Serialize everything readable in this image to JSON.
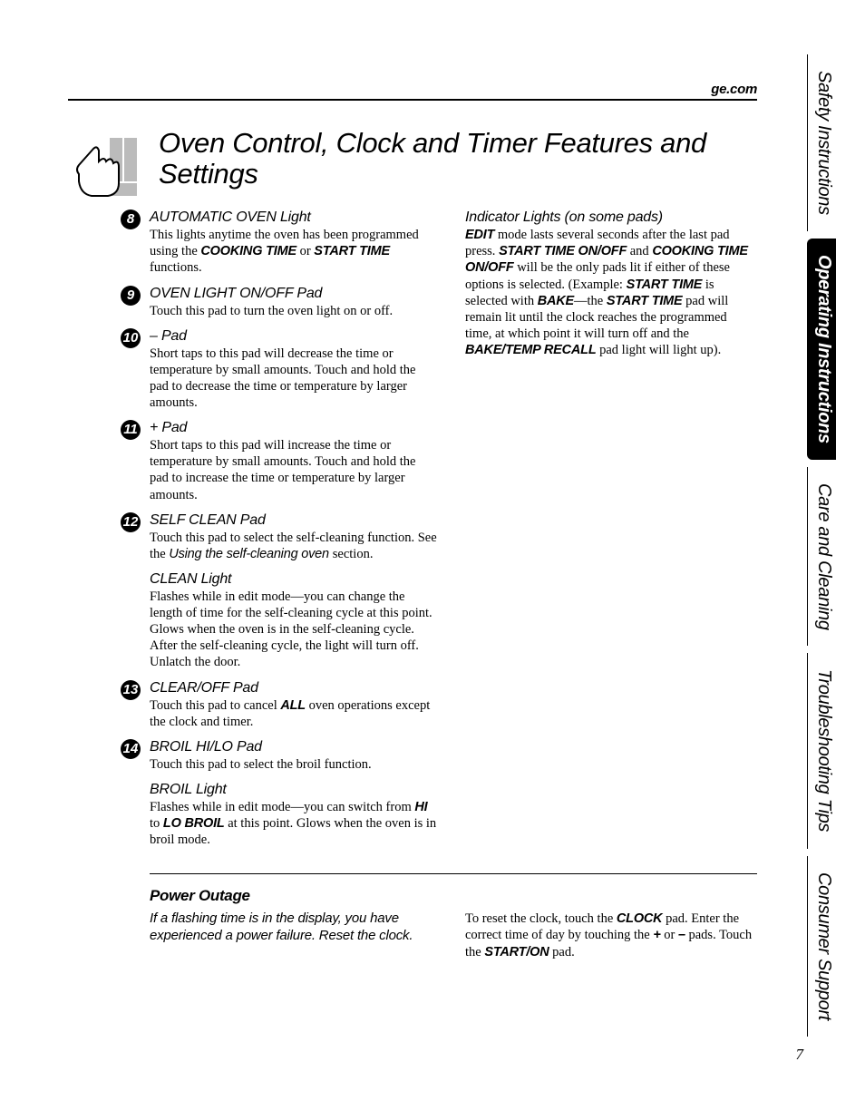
{
  "website": "ge.com",
  "pageTitle": "Oven Control, Clock and Timer Features and Settings",
  "pageNumber": "7",
  "tabs": [
    {
      "label": "Safety Instructions",
      "active": false
    },
    {
      "label": "Operating Instructions",
      "active": true
    },
    {
      "label": "Care and Cleaning",
      "active": false
    },
    {
      "label": "Troubleshooting Tips",
      "active": false
    },
    {
      "label": "Consumer Support",
      "active": false
    }
  ],
  "leftColumn": [
    {
      "num": "8",
      "title": "AUTOMATIC OVEN Light",
      "segments": [
        {
          "text": "This lights anytime the oven has been programmed using the ",
          "style": "plain"
        },
        {
          "text": "COOKING TIME",
          "style": "bold"
        },
        {
          "text": " or ",
          "style": "plain"
        },
        {
          "text": "START TIME",
          "style": "bold"
        },
        {
          "text": " functions.",
          "style": "plain"
        }
      ]
    },
    {
      "num": "9",
      "title": "OVEN LIGHT ON/OFF Pad",
      "segments": [
        {
          "text": "Touch this pad to turn the oven light on or off.",
          "style": "plain"
        }
      ]
    },
    {
      "num": "10",
      "title": "– Pad",
      "segments": [
        {
          "text": "Short taps to this pad will decrease the time or temperature by small amounts. Touch and hold the pad to decrease the time or temperature by larger amounts.",
          "style": "plain"
        }
      ]
    },
    {
      "num": "11",
      "title": "+ Pad",
      "segments": [
        {
          "text": "Short taps to this pad will increase the time or temperature by small amounts. Touch and hold the pad to increase the time or temperature by larger amounts.",
          "style": "plain"
        }
      ]
    },
    {
      "num": "12",
      "title": "SELF CLEAN Pad",
      "segments": [
        {
          "text": "Touch this pad to select the self-cleaning function. See the ",
          "style": "plain"
        },
        {
          "text": "Using the self-cleaning oven ",
          "style": "italic"
        },
        {
          "text": "section.",
          "style": "plain"
        }
      ]
    },
    {
      "num": "",
      "title": "CLEAN Light",
      "segments": [
        {
          "text": "Flashes while in edit mode—you can change the length of time for the self-cleaning cycle at this point. Glows when the oven is in the self-cleaning cycle. After the self-cleaning cycle, the light will turn off. Unlatch the door.",
          "style": "plain"
        }
      ]
    },
    {
      "num": "13",
      "title": "CLEAR/OFF Pad",
      "segments": [
        {
          "text": "Touch this pad to cancel ",
          "style": "plain"
        },
        {
          "text": "ALL",
          "style": "bold"
        },
        {
          "text": "  oven operations except the clock and timer.",
          "style": "plain"
        }
      ]
    },
    {
      "num": "14",
      "title": "BROIL HI/LO Pad",
      "segments": [
        {
          "text": "Touch this pad to select the broil function.",
          "style": "plain"
        }
      ]
    },
    {
      "num": "",
      "title": "BROIL Light",
      "segments": [
        {
          "text": "Flashes while in edit mode—you can switch from ",
          "style": "plain"
        },
        {
          "text": "HI",
          "style": "bold"
        },
        {
          "text": " to ",
          "style": "plain"
        },
        {
          "text": "LO BROIL",
          "style": "bold"
        },
        {
          "text": " at this point. Glows when the oven is in broil mode.",
          "style": "plain"
        }
      ]
    }
  ],
  "rightColumn": [
    {
      "title": "Indicator Lights (on some pads)",
      "segments": [
        {
          "text": "EDIT",
          "style": "bold"
        },
        {
          "text": " mode lasts several seconds after the last pad press. ",
          "style": "plain"
        },
        {
          "text": "START TIME ON/OFF",
          "style": "bold"
        },
        {
          "text": " and ",
          "style": "plain"
        },
        {
          "text": "COOKING TIME ON/OFF",
          "style": "bold"
        },
        {
          "text": " will be the only pads lit if either of these options is selected. (Example: ",
          "style": "plain"
        },
        {
          "text": "START TIME",
          "style": "bold"
        },
        {
          "text": " is selected with ",
          "style": "plain"
        },
        {
          "text": "BAKE",
          "style": "bold"
        },
        {
          "text": "—the ",
          "style": "plain"
        },
        {
          "text": "START TIME",
          "style": "bold"
        },
        {
          "text": " pad will remain lit until the clock reaches the programmed time, at which point it will turn off and the ",
          "style": "plain"
        },
        {
          "text": "BAKE/TEMP RECALL",
          "style": "bold"
        },
        {
          "text": " pad light will light up).",
          "style": "plain"
        }
      ]
    }
  ],
  "powerOutage": {
    "title": "Power Outage",
    "note": "If a flashing time is in the display, you have experienced a power failure. Reset the clock.",
    "segments": [
      {
        "text": "To reset the clock, touch the ",
        "style": "plain"
      },
      {
        "text": "CLOCK",
        "style": "bold"
      },
      {
        "text": " pad. Enter the correct time of day by touching the ",
        "style": "plain"
      },
      {
        "text": "+",
        "style": "bold"
      },
      {
        "text": " or ",
        "style": "plain"
      },
      {
        "text": "–",
        "style": "bold"
      },
      {
        "text": " pads. Touch the ",
        "style": "plain"
      },
      {
        "text": "START/ON",
        "style": "bold"
      },
      {
        "text": " pad.",
        "style": "plain"
      }
    ]
  },
  "colors": {
    "text": "#000000",
    "background": "#ffffff",
    "tabActive": "#000000"
  }
}
